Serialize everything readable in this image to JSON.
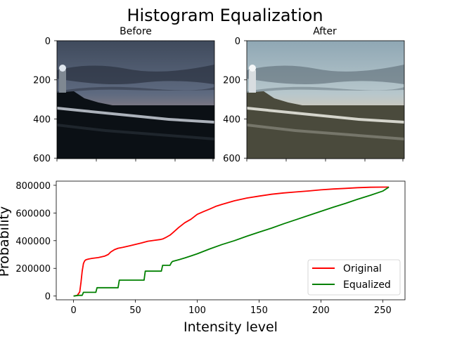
{
  "figure": {
    "title": "Histogram Equalization"
  },
  "images": [
    {
      "title": "Before",
      "yticks": [
        0,
        200,
        400,
        600
      ],
      "ylim": [
        775,
        0
      ],
      "palette": {
        "sky_top": "#3f4a5c",
        "sky_mid": "#5e6a80",
        "cloud_dark": "#2b3240",
        "horizon": "#e9a47a",
        "sea": "#3a4656",
        "ground": "#0b1015",
        "fence": "#c9cfd8"
      }
    },
    {
      "title": "After",
      "yticks": [
        0,
        200,
        400,
        600
      ],
      "ylim": [
        775,
        0
      ],
      "palette": {
        "sky_top": "#8fa7b4",
        "sky_mid": "#b7c7cc",
        "cloud_dark": "#5c6b74",
        "horizon": "#f2b07a",
        "sea": "#6c7a82",
        "ground": "#4a4a3c",
        "fence": "#e4e4dc"
      }
    }
  ],
  "chart_data": {
    "type": "line",
    "xlabel": "Intensity level",
    "ylabel": "Probability",
    "xlim": [
      -14,
      268
    ],
    "ylim": [
      -27000,
      830000
    ],
    "xticks": [
      0,
      50,
      100,
      150,
      200,
      250
    ],
    "yticks": [
      0,
      200000,
      400000,
      600000,
      800000
    ],
    "legend_position": "lower-right",
    "grid": false,
    "series": [
      {
        "name": "Original",
        "color": "#ff0000",
        "x": [
          0,
          3,
          5,
          6,
          7,
          8,
          9,
          10,
          12,
          15,
          20,
          25,
          28,
          30,
          33,
          36,
          40,
          45,
          50,
          55,
          60,
          65,
          70,
          72,
          75,
          78,
          80,
          85,
          90,
          95,
          100,
          105,
          110,
          115,
          120,
          130,
          140,
          150,
          160,
          170,
          180,
          190,
          200,
          210,
          220,
          230,
          240,
          250,
          255
        ],
        "y": [
          0,
          5000,
          30000,
          100000,
          180000,
          235000,
          255000,
          262000,
          267000,
          272000,
          278000,
          288000,
          300000,
          318000,
          335000,
          345000,
          352000,
          362000,
          373000,
          384000,
          396000,
          402000,
          408000,
          412000,
          425000,
          440000,
          455000,
          495000,
          530000,
          555000,
          590000,
          610000,
          628000,
          648000,
          662000,
          688000,
          708000,
          722000,
          735000,
          745000,
          752000,
          759000,
          767000,
          773000,
          778000,
          783000,
          786000,
          787000,
          787000
        ]
      },
      {
        "name": "Equalized",
        "color": "#008000",
        "x": [
          0,
          4,
          7,
          8,
          18,
          19,
          36,
          37,
          57,
          58,
          71,
          72,
          78,
          79,
          80,
          85,
          90,
          95,
          100,
          110,
          120,
          130,
          140,
          150,
          160,
          170,
          180,
          190,
          200,
          210,
          220,
          230,
          240,
          250,
          255
        ],
        "y": [
          0,
          5000,
          5000,
          27000,
          27000,
          60000,
          60000,
          115000,
          115000,
          180000,
          180000,
          222000,
          222000,
          240000,
          250000,
          262000,
          275000,
          290000,
          305000,
          340000,
          372000,
          400000,
          432000,
          462000,
          490000,
          522000,
          552000,
          582000,
          612000,
          642000,
          670000,
          700000,
          728000,
          758000,
          787000
        ]
      }
    ]
  }
}
